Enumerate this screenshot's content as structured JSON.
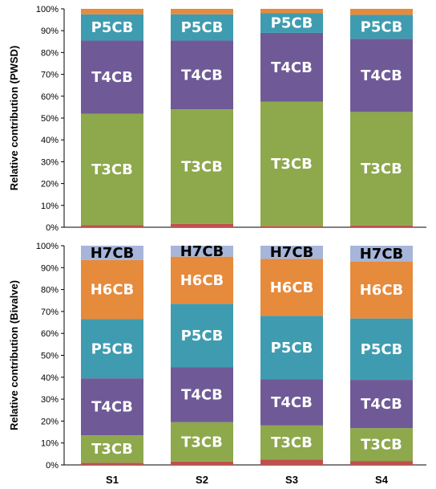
{
  "chart_data": [
    {
      "type": "bar",
      "stacked": true,
      "ylabel": "Relative contribution (PWSD)",
      "ylim": [
        0,
        100
      ],
      "y_tick_labels": [
        "0%",
        "10%",
        "20%",
        "30%",
        "40%",
        "50%",
        "60%",
        "70%",
        "80%",
        "90%",
        "100%"
      ],
      "categories": [
        "S1",
        "S2",
        "S3",
        "S4"
      ],
      "series": [
        {
          "segment": "bottom",
          "color": "#c0504d",
          "values": [
            1,
            1.5,
            0.5,
            0.8
          ]
        },
        {
          "name": "T3CB",
          "color": "#8ea84c",
          "values": [
            51,
            52.5,
            57,
            52
          ]
        },
        {
          "name": "T4CB",
          "color": "#6f5a97",
          "values": [
            33.5,
            31.5,
            31.5,
            33.5
          ]
        },
        {
          "name": "P5CB",
          "color": "#3f9cb0",
          "values": [
            12,
            12,
            9,
            11
          ]
        },
        {
          "segment": "top",
          "color": "#e68a3c",
          "values": [
            2.5,
            2.5,
            2,
            2.7
          ]
        }
      ]
    },
    {
      "type": "bar",
      "stacked": true,
      "ylabel": "Relative contribution (Bivalve)",
      "ylim": [
        0,
        100
      ],
      "y_tick_labels": [
        "0%",
        "10%",
        "20%",
        "30%",
        "40%",
        "50%",
        "60%",
        "70%",
        "80%",
        "90%",
        "100%"
      ],
      "categories": [
        "S1",
        "S2",
        "S3",
        "S4"
      ],
      "series": [
        {
          "segment": "bottom",
          "color": "#c0504d",
          "values": [
            1,
            1.5,
            2.5,
            1.8
          ]
        },
        {
          "name": "T3CB",
          "color": "#8ea84c",
          "values": [
            12.5,
            18,
            15.5,
            15
          ]
        },
        {
          "name": "T4CB",
          "color": "#6f5a97",
          "values": [
            26,
            25,
            21,
            22
          ]
        },
        {
          "name": "P5CB",
          "color": "#3f9cb0",
          "values": [
            27,
            29,
            29,
            28
          ]
        },
        {
          "name": "H6CB",
          "color": "#e68a3c",
          "values": [
            27,
            21.5,
            26,
            26
          ]
        },
        {
          "name": "H7CB",
          "color": "#a6b5d9",
          "values": [
            6.5,
            5,
            6,
            7.2
          ]
        }
      ]
    }
  ],
  "palette": {
    "axis": "#000000",
    "background": "#ffffff",
    "label_light": "#ffffff",
    "label_dark": "#000000"
  }
}
